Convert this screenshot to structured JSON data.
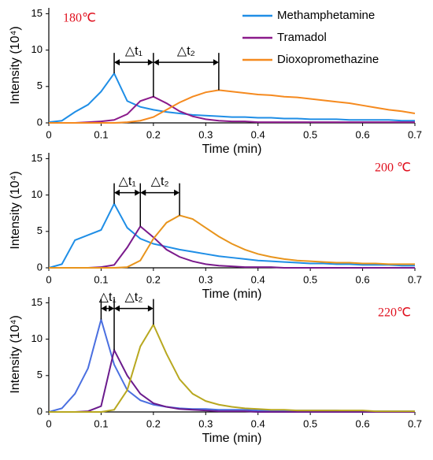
{
  "chart_data": [
    {
      "type": "line",
      "x": [
        0,
        0.025,
        0.05,
        0.075,
        0.1,
        0.125,
        0.15,
        0.175,
        0.2,
        0.225,
        0.25,
        0.275,
        0.3,
        0.325,
        0.35,
        0.375,
        0.4,
        0.425,
        0.45,
        0.475,
        0.5,
        0.525,
        0.55,
        0.575,
        0.6,
        0.625,
        0.65,
        0.675,
        0.7
      ],
      "series": [
        {
          "name": "Methamphetamine",
          "color": "#1f8ee6",
          "values": [
            0.1,
            0.3,
            1.5,
            2.5,
            4.3,
            6.8,
            3.0,
            2.2,
            1.8,
            1.5,
            1.3,
            1.1,
            1.0,
            0.9,
            0.8,
            0.8,
            0.7,
            0.7,
            0.6,
            0.6,
            0.5,
            0.5,
            0.5,
            0.4,
            0.4,
            0.4,
            0.4,
            0.3,
            0.3
          ]
        },
        {
          "name": "Tramadol",
          "color": "#8b1a8b",
          "values": [
            0,
            0,
            0,
            0.1,
            0.2,
            0.4,
            1.2,
            3.0,
            3.6,
            2.7,
            1.6,
            0.9,
            0.5,
            0.3,
            0.2,
            0.2,
            0.1,
            0.1,
            0.1,
            0.1,
            0.1,
            0.1,
            0.1,
            0.1,
            0.1,
            0.1,
            0.1,
            0.1,
            0.1
          ]
        },
        {
          "name": "Dioxopromethazine",
          "color": "#f58a1f",
          "values": [
            0,
            0,
            0,
            0,
            0,
            0,
            0.1,
            0.3,
            0.8,
            1.8,
            2.8,
            3.6,
            4.2,
            4.5,
            4.3,
            4.1,
            3.9,
            3.8,
            3.6,
            3.5,
            3.3,
            3.1,
            2.9,
            2.7,
            2.4,
            2.1,
            1.8,
            1.6,
            1.3
          ]
        }
      ],
      "xlim": [
        0,
        0.7
      ],
      "ylim": [
        0,
        15.8
      ],
      "xticks": [
        0,
        0.1,
        0.2,
        0.3,
        0.4,
        0.5,
        0.6,
        0.7
      ],
      "yticks": [
        0,
        5,
        10,
        15
      ],
      "xlabel": "Time (min)",
      "ylabel": "Intensity (10⁴)",
      "legend": "upper right",
      "annotations": [
        "180℃",
        "△t₁",
        "△t₂"
      ]
    },
    {
      "type": "line",
      "x": [
        0,
        0.025,
        0.05,
        0.075,
        0.1,
        0.125,
        0.15,
        0.175,
        0.2,
        0.225,
        0.25,
        0.275,
        0.3,
        0.325,
        0.35,
        0.375,
        0.4,
        0.425,
        0.45,
        0.475,
        0.5,
        0.525,
        0.55,
        0.575,
        0.6,
        0.625,
        0.65,
        0.675,
        0.7
      ],
      "series": [
        {
          "color": "#1f8ee6",
          "values": [
            0,
            0.5,
            3.8,
            4.5,
            5.2,
            8.8,
            5.5,
            4.0,
            3.3,
            2.9,
            2.5,
            2.2,
            1.9,
            1.6,
            1.4,
            1.2,
            1.0,
            0.9,
            0.8,
            0.7,
            0.6,
            0.6,
            0.5,
            0.5,
            0.4,
            0.4,
            0.4,
            0.3,
            0.3
          ]
        },
        {
          "color": "#7a1a8c",
          "values": [
            0,
            0,
            0,
            0,
            0.1,
            0.4,
            2.8,
            5.7,
            4.2,
            2.5,
            1.5,
            0.9,
            0.5,
            0.3,
            0.2,
            0.1,
            0.1,
            0.1,
            0,
            0,
            0,
            0,
            0,
            0,
            0,
            0,
            0,
            0,
            0
          ]
        },
        {
          "color": "#e8941c",
          "values": [
            0,
            0,
            0,
            0,
            0,
            0,
            0.1,
            1.0,
            4.0,
            6.2,
            7.2,
            6.7,
            5.5,
            4.3,
            3.3,
            2.5,
            1.9,
            1.5,
            1.2,
            1.0,
            0.9,
            0.8,
            0.7,
            0.7,
            0.6,
            0.6,
            0.5,
            0.5,
            0.5
          ]
        }
      ],
      "xlim": [
        0,
        0.7
      ],
      "ylim": [
        0,
        15.8
      ],
      "xticks": [
        0,
        0.1,
        0.2,
        0.3,
        0.4,
        0.5,
        0.6,
        0.7
      ],
      "yticks": [
        0,
        5,
        10,
        15
      ],
      "xlabel": "Time (min)",
      "ylabel": "Intensity (10⁴)",
      "annotations": [
        "200 ℃",
        "△t₁",
        "△t₂"
      ]
    },
    {
      "type": "line",
      "x": [
        0,
        0.025,
        0.05,
        0.075,
        0.1,
        0.125,
        0.15,
        0.175,
        0.2,
        0.225,
        0.25,
        0.275,
        0.3,
        0.325,
        0.35,
        0.375,
        0.4,
        0.425,
        0.45,
        0.475,
        0.5,
        0.525,
        0.55,
        0.575,
        0.6,
        0.625,
        0.65,
        0.675,
        0.7
      ],
      "series": [
        {
          "color": "#4a6fe0",
          "values": [
            0,
            0.5,
            2.5,
            6.0,
            12.7,
            6.5,
            3.0,
            1.6,
            1.0,
            0.7,
            0.5,
            0.4,
            0.4,
            0.3,
            0.3,
            0.3,
            0.2,
            0.2,
            0.2,
            0.2,
            0.2,
            0.2,
            0.2,
            0.1,
            0.1,
            0.1,
            0.1,
            0.1,
            0.1
          ]
        },
        {
          "color": "#6a1a8c",
          "values": [
            0,
            0,
            0,
            0.1,
            0.8,
            8.5,
            5.0,
            2.5,
            1.2,
            0.7,
            0.4,
            0.3,
            0.2,
            0.1,
            0.1,
            0.1,
            0,
            0,
            0,
            0,
            0,
            0,
            0,
            0,
            0,
            0,
            0,
            0,
            0
          ]
        },
        {
          "color": "#b8a820",
          "values": [
            0,
            0,
            0,
            0,
            0,
            0.3,
            3.0,
            9.0,
            12.0,
            8.0,
            4.5,
            2.5,
            1.5,
            1.0,
            0.7,
            0.5,
            0.4,
            0.3,
            0.3,
            0.2,
            0.2,
            0.2,
            0.2,
            0.2,
            0.2,
            0.1,
            0.1,
            0.1,
            0.1
          ]
        }
      ],
      "xlim": [
        0,
        0.7
      ],
      "ylim": [
        0,
        15.8
      ],
      "xticks": [
        0,
        0.1,
        0.2,
        0.3,
        0.4,
        0.5,
        0.6,
        0.7
      ],
      "yticks": [
        0,
        5,
        10,
        15
      ],
      "xlabel": "Time (min)",
      "ylabel": "Intensity (10⁴)",
      "annotations": [
        "220℃",
        "△t₁",
        "△t₂"
      ]
    }
  ]
}
